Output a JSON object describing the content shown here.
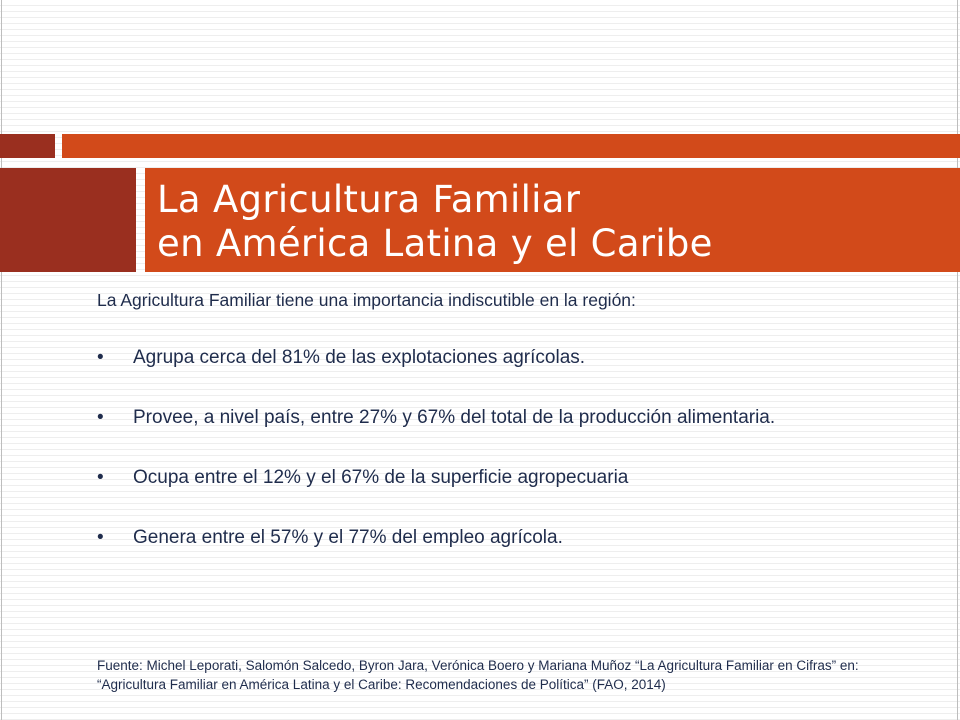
{
  "slide": {
    "title_line1": "La Agricultura Familiar",
    "title_line2": "en América Latina y el Caribe",
    "intro": "La Agricultura Familiar tiene una importancia indiscutible en la región:",
    "bullet_symbol": "•",
    "bullets": [
      "Agrupa cerca del 81% de las explotaciones agrícolas.",
      "Provee, a nivel país, entre 27% y 67% del total de la producción alimentaria.",
      "Ocupa entre el 12% y el 67% de la superficie agropecuaria",
      "Genera entre el 57% y el 77% del empleo agrícola."
    ],
    "source": "Fuente: Michel Leporati, Salomón Salcedo, Byron Jara, Verónica Boero y Mariana Muñoz “La Agricultura Familiar en Cifras” en: “Agricultura Familiar en América Latina y el Caribe: Recomendaciones de Política” (FAO, 2014)"
  },
  "colors": {
    "accent_orange": "#d24a1a",
    "accent_dark_red": "#9a2f1f",
    "body_text": "#1f2c4c",
    "title_text": "#ffffff"
  }
}
